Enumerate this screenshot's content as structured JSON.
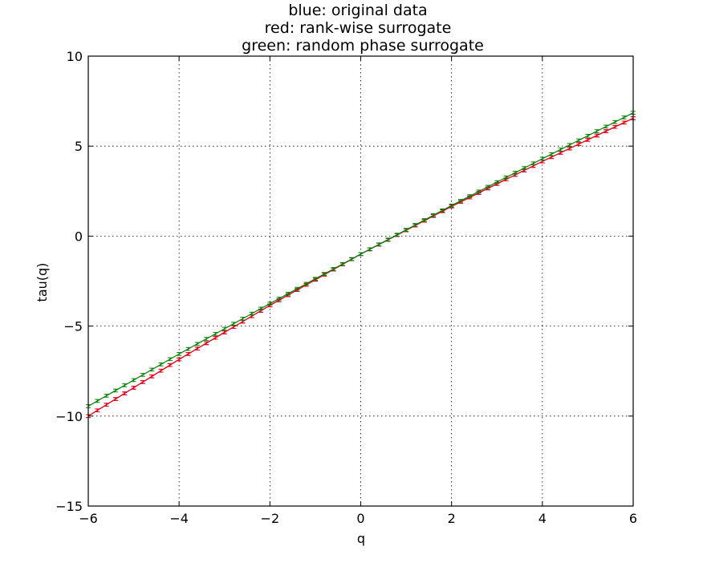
{
  "chart_data": {
    "type": "line",
    "title_lines": [
      "blue: original data",
      "red: rank-wise surrogate",
      "green: random phase surrogate"
    ],
    "xlabel": "q",
    "ylabel": "tau(q)",
    "xlim": [
      -6,
      6
    ],
    "ylim": [
      -15,
      10
    ],
    "xticks": [
      -6,
      -4,
      -2,
      0,
      2,
      4,
      6
    ],
    "xtick_labels": [
      "−6",
      "−4",
      "−2",
      "0",
      "2",
      "4",
      "6"
    ],
    "yticks": [
      -15,
      -10,
      -5,
      0,
      5,
      10
    ],
    "ytick_labels": [
      "−15",
      "−10",
      "−5",
      "0",
      "5",
      "10"
    ],
    "grid": true,
    "error_bars": true,
    "q_range": {
      "start": -6,
      "stop": 6,
      "step": 0.2
    },
    "series": [
      {
        "name": "original data",
        "color": "#0000ff",
        "points": [
          [
            -6,
            -10.0
          ],
          [
            -4,
            -6.85
          ],
          [
            -2,
            -3.85
          ],
          [
            0,
            -1.0
          ],
          [
            2,
            1.65
          ],
          [
            4,
            4.15
          ],
          [
            6,
            6.55
          ]
        ],
        "err": 0.08
      },
      {
        "name": "rank-wise surrogate",
        "color": "#ff0000",
        "points": [
          [
            -6,
            -10.0
          ],
          [
            -4,
            -6.85
          ],
          [
            -2,
            -3.85
          ],
          [
            0,
            -1.0
          ],
          [
            2,
            1.65
          ],
          [
            4,
            4.15
          ],
          [
            6,
            6.55
          ]
        ],
        "err": 0.08
      },
      {
        "name": "random phase surrogate",
        "color": "#008000",
        "points": [
          [
            -6,
            -9.45
          ],
          [
            -4,
            -6.55
          ],
          [
            -2,
            -3.75
          ],
          [
            0,
            -1.0
          ],
          [
            2,
            1.7
          ],
          [
            4,
            4.3
          ],
          [
            6,
            6.85
          ]
        ],
        "err": 0.08
      }
    ]
  }
}
